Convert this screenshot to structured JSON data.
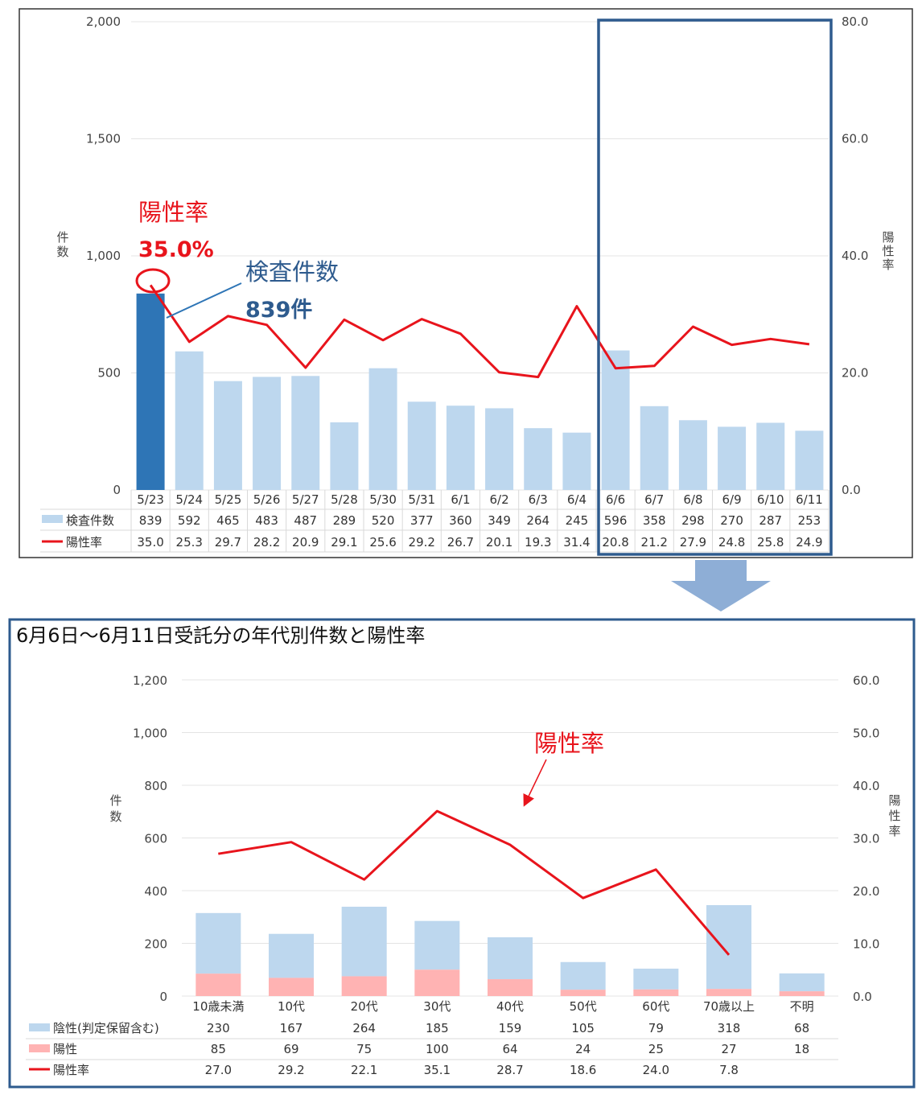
{
  "chart_data": [
    {
      "type": "bar",
      "title": "",
      "categories": [
        "5/23",
        "5/24",
        "5/25",
        "5/26",
        "5/27",
        "5/28",
        "5/30",
        "5/31",
        "6/1",
        "6/2",
        "6/3",
        "6/4",
        "6/6",
        "6/7",
        "6/8",
        "6/9",
        "6/10",
        "6/11"
      ],
      "series": [
        {
          "name": "検査件数",
          "kind": "bar",
          "axis": "left",
          "values": [
            839,
            592,
            465,
            483,
            487,
            289,
            520,
            377,
            360,
            349,
            264,
            245,
            596,
            358,
            298,
            270,
            287,
            253
          ]
        },
        {
          "name": "陽性率",
          "kind": "line",
          "axis": "right",
          "values": [
            35.0,
            25.3,
            29.7,
            28.2,
            20.9,
            29.1,
            25.6,
            29.2,
            26.7,
            20.1,
            19.3,
            31.4,
            20.8,
            21.2,
            27.9,
            24.8,
            25.8,
            24.9
          ]
        }
      ],
      "table_values": {
        "count": [
          "839",
          "592",
          "465",
          "483",
          "487",
          "289",
          "520",
          "377",
          "360",
          "349",
          "264",
          "245",
          "596",
          "358",
          "298",
          "270",
          "287",
          "253"
        ],
        "rate": [
          "35.0",
          "25.3",
          "29.7",
          "28.2",
          "20.9",
          "29.1",
          "25.6",
          "29.2",
          "26.7",
          "20.1",
          "19.3",
          "31.4",
          "20.8",
          "21.2",
          "27.9",
          "24.8",
          "25.8",
          "24.9"
        ]
      },
      "ylabel": "件数",
      "y2label": "陽性率",
      "ylim": [
        0,
        2000
      ],
      "y2lim": [
        0,
        80
      ],
      "yticks": [
        "0",
        "500",
        "1,000",
        "1,500",
        "2,000"
      ],
      "y2ticks": [
        "0.0",
        "20.0",
        "40.0",
        "60.0",
        "80.0"
      ],
      "grid": true,
      "highlight_color": "#2e75b6",
      "bar_color": "#bdd7ee",
      "line_color": "#e8141c",
      "annotations": {
        "rate_title": "陽性率",
        "rate_value": "35.0%",
        "count_title": "検査件数",
        "count_value": "839件"
      }
    },
    {
      "type": "bar",
      "title": "6月6日～6月11日受託分の年代別件数と陽性率",
      "categories": [
        "10歳未満",
        "10代",
        "20代",
        "30代",
        "40代",
        "50代",
        "60代",
        "70歳以上",
        "不明"
      ],
      "series": [
        {
          "name": "陰性(判定保留含む)",
          "kind": "stacked_bar",
          "axis": "left",
          "values": [
            230,
            167,
            264,
            185,
            159,
            105,
            79,
            318,
            68
          ]
        },
        {
          "name": "陽性",
          "kind": "stacked_bar",
          "axis": "left",
          "values": [
            85,
            69,
            75,
            100,
            64,
            24,
            25,
            27,
            18
          ]
        },
        {
          "name": "陽性率",
          "kind": "line",
          "axis": "right",
          "values": [
            27.0,
            29.2,
            22.1,
            35.1,
            28.7,
            18.6,
            24.0,
            7.8,
            null
          ]
        }
      ],
      "table_values": {
        "negative": [
          "230",
          "167",
          "264",
          "185",
          "159",
          "105",
          "79",
          "318",
          "68"
        ],
        "positive": [
          "85",
          "69",
          "75",
          "100",
          "64",
          "24",
          "25",
          "27",
          "18"
        ],
        "rate": [
          "27.0",
          "29.2",
          "22.1",
          "35.1",
          "28.7",
          "18.6",
          "24.0",
          "7.8",
          ""
        ]
      },
      "ylabel": "件数",
      "y2label": "陽性率",
      "ylim": [
        0,
        1200
      ],
      "y2lim": [
        0,
        60
      ],
      "yticks": [
        "0",
        "200",
        "400",
        "600",
        "800",
        "1,000",
        "1,200"
      ],
      "y2ticks": [
        "0.0",
        "10.0",
        "20.0",
        "30.0",
        "40.0",
        "50.0",
        "60.0"
      ],
      "grid": true,
      "negative_color": "#bdd7ee",
      "positive_color": "#ffb3b3",
      "line_color": "#e8141c",
      "annotations": {
        "rate_title": "陽性率"
      }
    }
  ]
}
